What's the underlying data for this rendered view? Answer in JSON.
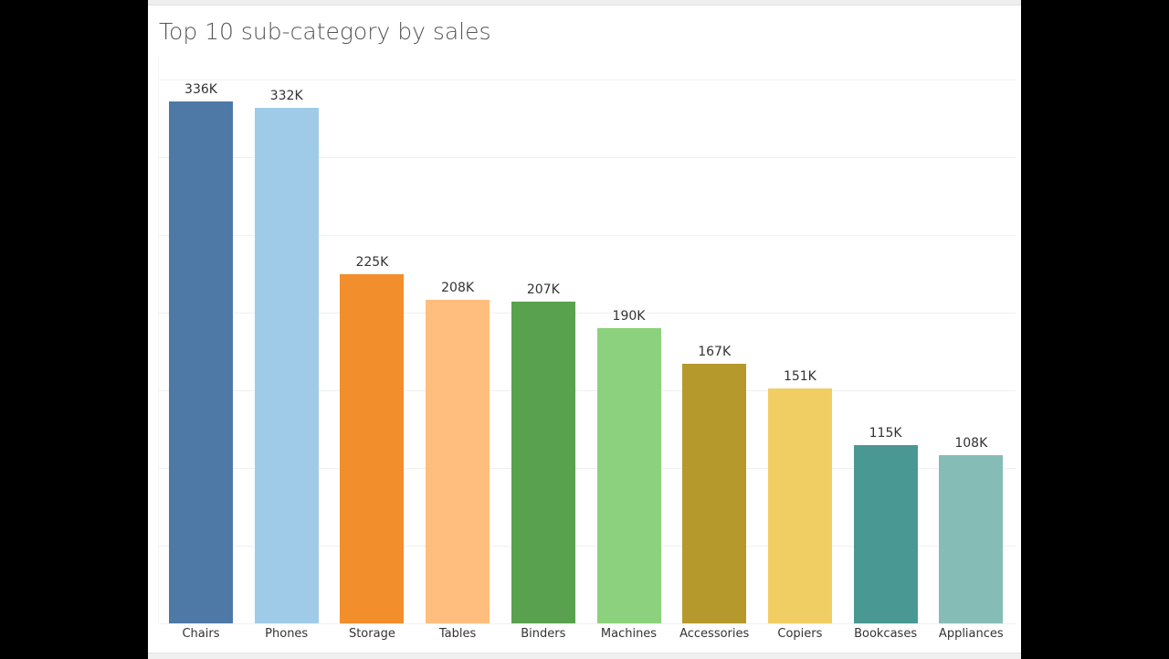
{
  "title": "Top 10 sub-category by sales",
  "chart_data": {
    "type": "bar",
    "title": "Top 10 sub-category by sales",
    "xlabel": "",
    "ylabel": "",
    "categories": [
      "Chairs",
      "Phones",
      "Storage",
      "Tables",
      "Binders",
      "Machines",
      "Accessories",
      "Copiers",
      "Bookcases",
      "Appliances"
    ],
    "values": [
      336,
      332,
      225,
      208,
      207,
      190,
      167,
      151,
      115,
      108
    ],
    "value_labels": [
      "336K",
      "332K",
      "225K",
      "208K",
      "207K",
      "190K",
      "167K",
      "151K",
      "115K",
      "108K"
    ],
    "colors": [
      "#4e79a7",
      "#a0cbe8",
      "#f28e2b",
      "#ffbe7d",
      "#59a14f",
      "#8cd17d",
      "#b6992d",
      "#f1ce63",
      "#499894",
      "#86bcb6"
    ],
    "units": "K",
    "ylim": [
      0,
      365
    ],
    "grid": true,
    "gridline_values": [
      0,
      50,
      100,
      150,
      200,
      250,
      300,
      350
    ],
    "legend": "none",
    "y_axis_visible": false
  }
}
